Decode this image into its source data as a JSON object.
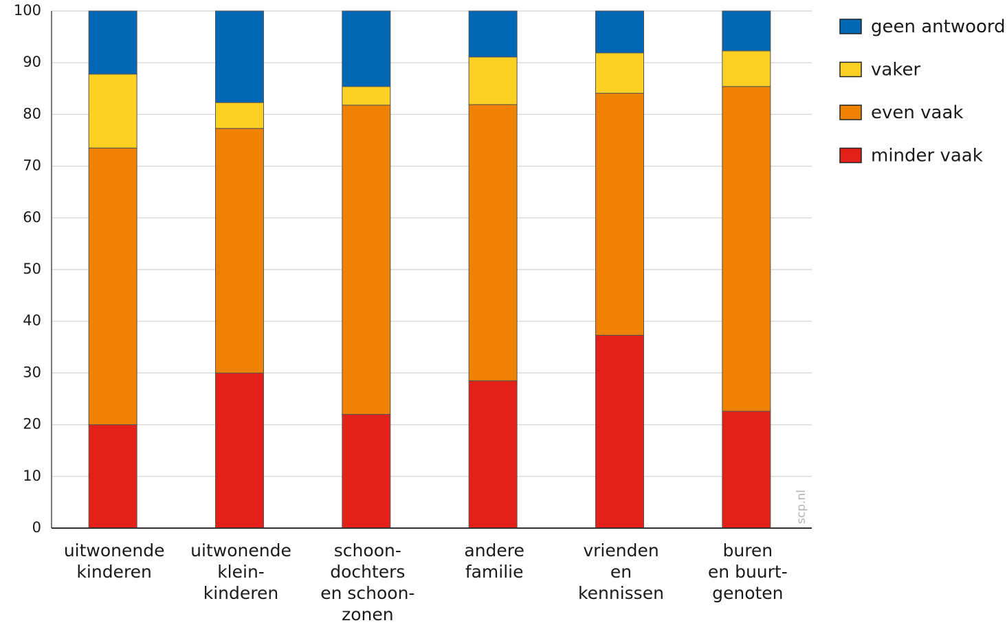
{
  "chart_data": {
    "type": "bar",
    "stacked": true,
    "categories": [
      [
        "uitwonende",
        "kinderen"
      ],
      [
        "uitwonende",
        "klein-",
        "kinderen"
      ],
      [
        "schoon-",
        "dochters",
        "en schoon-",
        "zonen"
      ],
      [
        "andere",
        "familie"
      ],
      [
        "vrienden",
        "en",
        "kennissen"
      ],
      [
        "buren",
        "en buurt-",
        "genoten"
      ]
    ],
    "series": [
      {
        "name": "minder vaak",
        "color": "#e32119",
        "values": [
          20,
          30,
          22,
          28.5,
          37.3,
          22.6
        ]
      },
      {
        "name": "even vaak",
        "color": "#ef8200",
        "values": [
          53.5,
          47.3,
          59.8,
          53.4,
          46.8,
          62.8
        ]
      },
      {
        "name": "vaker",
        "color": "#fdd024",
        "values": [
          14.3,
          5,
          3.6,
          9.2,
          7.8,
          6.9
        ]
      },
      {
        "name": "geen antwoord",
        "color": "#0067b4",
        "values": [
          12.2,
          17.7,
          14.6,
          8.9,
          8.1,
          7.7
        ]
      }
    ],
    "legend_order": [
      "geen antwoord",
      "vaker",
      "even vaak",
      "minder vaak"
    ],
    "ylim": [
      0,
      100
    ],
    "yticks": [
      0,
      10,
      20,
      30,
      40,
      50,
      60,
      70,
      80,
      90,
      100
    ],
    "grid": true,
    "legend_position": "right",
    "xlabel": "",
    "ylabel": ""
  },
  "watermark": "scp.nl"
}
